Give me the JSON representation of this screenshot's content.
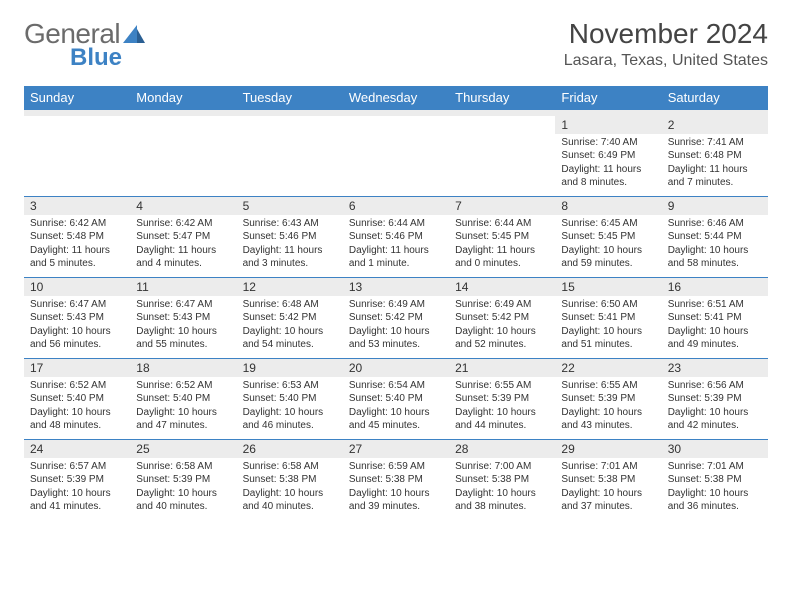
{
  "logo": {
    "word1": "General",
    "word2": "Blue",
    "color_gray": "#6b6b6b",
    "color_blue": "#3d82c4"
  },
  "header": {
    "month_title": "November 2024",
    "location": "Lasara, Texas, United States"
  },
  "colors": {
    "header_bg": "#3d82c4",
    "header_fg": "#ffffff",
    "daynum_bg": "#ececec",
    "rule": "#3d82c4",
    "text": "#333333"
  },
  "day_names": [
    "Sunday",
    "Monday",
    "Tuesday",
    "Wednesday",
    "Thursday",
    "Friday",
    "Saturday"
  ],
  "weeks": [
    [
      null,
      null,
      null,
      null,
      null,
      {
        "n": "1",
        "sr": "Sunrise: 7:40 AM",
        "ss": "Sunset: 6:49 PM",
        "dl1": "Daylight: 11 hours",
        "dl2": "and 8 minutes."
      },
      {
        "n": "2",
        "sr": "Sunrise: 7:41 AM",
        "ss": "Sunset: 6:48 PM",
        "dl1": "Daylight: 11 hours",
        "dl2": "and 7 minutes."
      }
    ],
    [
      {
        "n": "3",
        "sr": "Sunrise: 6:42 AM",
        "ss": "Sunset: 5:48 PM",
        "dl1": "Daylight: 11 hours",
        "dl2": "and 5 minutes."
      },
      {
        "n": "4",
        "sr": "Sunrise: 6:42 AM",
        "ss": "Sunset: 5:47 PM",
        "dl1": "Daylight: 11 hours",
        "dl2": "and 4 minutes."
      },
      {
        "n": "5",
        "sr": "Sunrise: 6:43 AM",
        "ss": "Sunset: 5:46 PM",
        "dl1": "Daylight: 11 hours",
        "dl2": "and 3 minutes."
      },
      {
        "n": "6",
        "sr": "Sunrise: 6:44 AM",
        "ss": "Sunset: 5:46 PM",
        "dl1": "Daylight: 11 hours",
        "dl2": "and 1 minute."
      },
      {
        "n": "7",
        "sr": "Sunrise: 6:44 AM",
        "ss": "Sunset: 5:45 PM",
        "dl1": "Daylight: 11 hours",
        "dl2": "and 0 minutes."
      },
      {
        "n": "8",
        "sr": "Sunrise: 6:45 AM",
        "ss": "Sunset: 5:45 PM",
        "dl1": "Daylight: 10 hours",
        "dl2": "and 59 minutes."
      },
      {
        "n": "9",
        "sr": "Sunrise: 6:46 AM",
        "ss": "Sunset: 5:44 PM",
        "dl1": "Daylight: 10 hours",
        "dl2": "and 58 minutes."
      }
    ],
    [
      {
        "n": "10",
        "sr": "Sunrise: 6:47 AM",
        "ss": "Sunset: 5:43 PM",
        "dl1": "Daylight: 10 hours",
        "dl2": "and 56 minutes."
      },
      {
        "n": "11",
        "sr": "Sunrise: 6:47 AM",
        "ss": "Sunset: 5:43 PM",
        "dl1": "Daylight: 10 hours",
        "dl2": "and 55 minutes."
      },
      {
        "n": "12",
        "sr": "Sunrise: 6:48 AM",
        "ss": "Sunset: 5:42 PM",
        "dl1": "Daylight: 10 hours",
        "dl2": "and 54 minutes."
      },
      {
        "n": "13",
        "sr": "Sunrise: 6:49 AM",
        "ss": "Sunset: 5:42 PM",
        "dl1": "Daylight: 10 hours",
        "dl2": "and 53 minutes."
      },
      {
        "n": "14",
        "sr": "Sunrise: 6:49 AM",
        "ss": "Sunset: 5:42 PM",
        "dl1": "Daylight: 10 hours",
        "dl2": "and 52 minutes."
      },
      {
        "n": "15",
        "sr": "Sunrise: 6:50 AM",
        "ss": "Sunset: 5:41 PM",
        "dl1": "Daylight: 10 hours",
        "dl2": "and 51 minutes."
      },
      {
        "n": "16",
        "sr": "Sunrise: 6:51 AM",
        "ss": "Sunset: 5:41 PM",
        "dl1": "Daylight: 10 hours",
        "dl2": "and 49 minutes."
      }
    ],
    [
      {
        "n": "17",
        "sr": "Sunrise: 6:52 AM",
        "ss": "Sunset: 5:40 PM",
        "dl1": "Daylight: 10 hours",
        "dl2": "and 48 minutes."
      },
      {
        "n": "18",
        "sr": "Sunrise: 6:52 AM",
        "ss": "Sunset: 5:40 PM",
        "dl1": "Daylight: 10 hours",
        "dl2": "and 47 minutes."
      },
      {
        "n": "19",
        "sr": "Sunrise: 6:53 AM",
        "ss": "Sunset: 5:40 PM",
        "dl1": "Daylight: 10 hours",
        "dl2": "and 46 minutes."
      },
      {
        "n": "20",
        "sr": "Sunrise: 6:54 AM",
        "ss": "Sunset: 5:40 PM",
        "dl1": "Daylight: 10 hours",
        "dl2": "and 45 minutes."
      },
      {
        "n": "21",
        "sr": "Sunrise: 6:55 AM",
        "ss": "Sunset: 5:39 PM",
        "dl1": "Daylight: 10 hours",
        "dl2": "and 44 minutes."
      },
      {
        "n": "22",
        "sr": "Sunrise: 6:55 AM",
        "ss": "Sunset: 5:39 PM",
        "dl1": "Daylight: 10 hours",
        "dl2": "and 43 minutes."
      },
      {
        "n": "23",
        "sr": "Sunrise: 6:56 AM",
        "ss": "Sunset: 5:39 PM",
        "dl1": "Daylight: 10 hours",
        "dl2": "and 42 minutes."
      }
    ],
    [
      {
        "n": "24",
        "sr": "Sunrise: 6:57 AM",
        "ss": "Sunset: 5:39 PM",
        "dl1": "Daylight: 10 hours",
        "dl2": "and 41 minutes."
      },
      {
        "n": "25",
        "sr": "Sunrise: 6:58 AM",
        "ss": "Sunset: 5:39 PM",
        "dl1": "Daylight: 10 hours",
        "dl2": "and 40 minutes."
      },
      {
        "n": "26",
        "sr": "Sunrise: 6:58 AM",
        "ss": "Sunset: 5:38 PM",
        "dl1": "Daylight: 10 hours",
        "dl2": "and 40 minutes."
      },
      {
        "n": "27",
        "sr": "Sunrise: 6:59 AM",
        "ss": "Sunset: 5:38 PM",
        "dl1": "Daylight: 10 hours",
        "dl2": "and 39 minutes."
      },
      {
        "n": "28",
        "sr": "Sunrise: 7:00 AM",
        "ss": "Sunset: 5:38 PM",
        "dl1": "Daylight: 10 hours",
        "dl2": "and 38 minutes."
      },
      {
        "n": "29",
        "sr": "Sunrise: 7:01 AM",
        "ss": "Sunset: 5:38 PM",
        "dl1": "Daylight: 10 hours",
        "dl2": "and 37 minutes."
      },
      {
        "n": "30",
        "sr": "Sunrise: 7:01 AM",
        "ss": "Sunset: 5:38 PM",
        "dl1": "Daylight: 10 hours",
        "dl2": "and 36 minutes."
      }
    ]
  ]
}
